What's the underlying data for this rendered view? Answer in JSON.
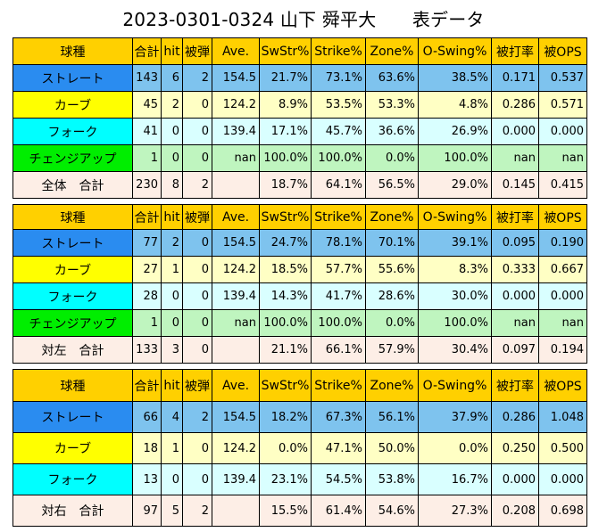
{
  "title": "2023-0301-0324 山下 舜平大　　表データ",
  "headers": [
    "球種",
    "合計",
    "hit",
    "被弾",
    "Ave.",
    "SwStr%",
    "Strike%",
    "Zone%",
    "O-Swing%",
    "被打率",
    "被OPS"
  ],
  "tables": [
    {
      "rows": [
        {
          "kind": "straight",
          "cells": [
            "ストレート",
            "143",
            "6",
            "2",
            "154.5",
            "21.7%",
            "73.1%",
            "63.6%",
            "38.5%",
            "0.171",
            "0.537"
          ]
        },
        {
          "kind": "curve",
          "cells": [
            "カーブ",
            "45",
            "2",
            "0",
            "124.2",
            "8.9%",
            "53.5%",
            "53.3%",
            "4.8%",
            "0.286",
            "0.571"
          ]
        },
        {
          "kind": "fork",
          "cells": [
            "フォーク",
            "41",
            "0",
            "0",
            "139.4",
            "17.1%",
            "45.7%",
            "36.6%",
            "26.9%",
            "0.000",
            "0.000"
          ]
        },
        {
          "kind": "change",
          "cells": [
            "チェンジアップ",
            "1",
            "0",
            "0",
            "nan",
            "100.0%",
            "100.0%",
            "0.0%",
            "100.0%",
            "nan",
            "nan"
          ]
        },
        {
          "kind": "total",
          "cells": [
            "全体　合計",
            "230",
            "8",
            "2",
            "",
            "18.7%",
            "64.1%",
            "56.5%",
            "29.0%",
            "0.145",
            "0.415"
          ]
        }
      ]
    },
    {
      "rows": [
        {
          "kind": "straight",
          "cells": [
            "ストレート",
            "77",
            "2",
            "0",
            "154.5",
            "24.7%",
            "78.1%",
            "70.1%",
            "39.1%",
            "0.095",
            "0.190"
          ]
        },
        {
          "kind": "curve",
          "cells": [
            "カーブ",
            "27",
            "1",
            "0",
            "124.2",
            "18.5%",
            "57.7%",
            "55.6%",
            "8.3%",
            "0.333",
            "0.667"
          ]
        },
        {
          "kind": "fork",
          "cells": [
            "フォーク",
            "28",
            "0",
            "0",
            "139.4",
            "14.3%",
            "41.7%",
            "28.6%",
            "30.0%",
            "0.000",
            "0.000"
          ]
        },
        {
          "kind": "change",
          "cells": [
            "チェンジアップ",
            "1",
            "0",
            "0",
            "nan",
            "100.0%",
            "100.0%",
            "0.0%",
            "100.0%",
            "nan",
            "nan"
          ]
        },
        {
          "kind": "total",
          "cells": [
            "対左　合計",
            "133",
            "3",
            "0",
            "",
            "21.1%",
            "66.1%",
            "57.9%",
            "30.4%",
            "0.097",
            "0.194"
          ]
        }
      ]
    },
    {
      "rows": [
        {
          "kind": "straight",
          "cells": [
            "ストレート",
            "66",
            "4",
            "2",
            "154.5",
            "18.2%",
            "67.3%",
            "56.1%",
            "37.9%",
            "0.286",
            "1.048"
          ]
        },
        {
          "kind": "curve",
          "cells": [
            "カーブ",
            "18",
            "1",
            "0",
            "124.2",
            "0.0%",
            "47.1%",
            "50.0%",
            "0.0%",
            "0.250",
            "0.500"
          ]
        },
        {
          "kind": "fork",
          "cells": [
            "フォーク",
            "13",
            "0",
            "0",
            "139.4",
            "23.1%",
            "54.5%",
            "53.8%",
            "16.7%",
            "0.000",
            "0.000"
          ]
        },
        {
          "kind": "total",
          "cells": [
            "対右　合計",
            "97",
            "5",
            "2",
            "",
            "15.5%",
            "61.4%",
            "54.6%",
            "27.3%",
            "0.208",
            "0.698"
          ]
        }
      ]
    }
  ]
}
